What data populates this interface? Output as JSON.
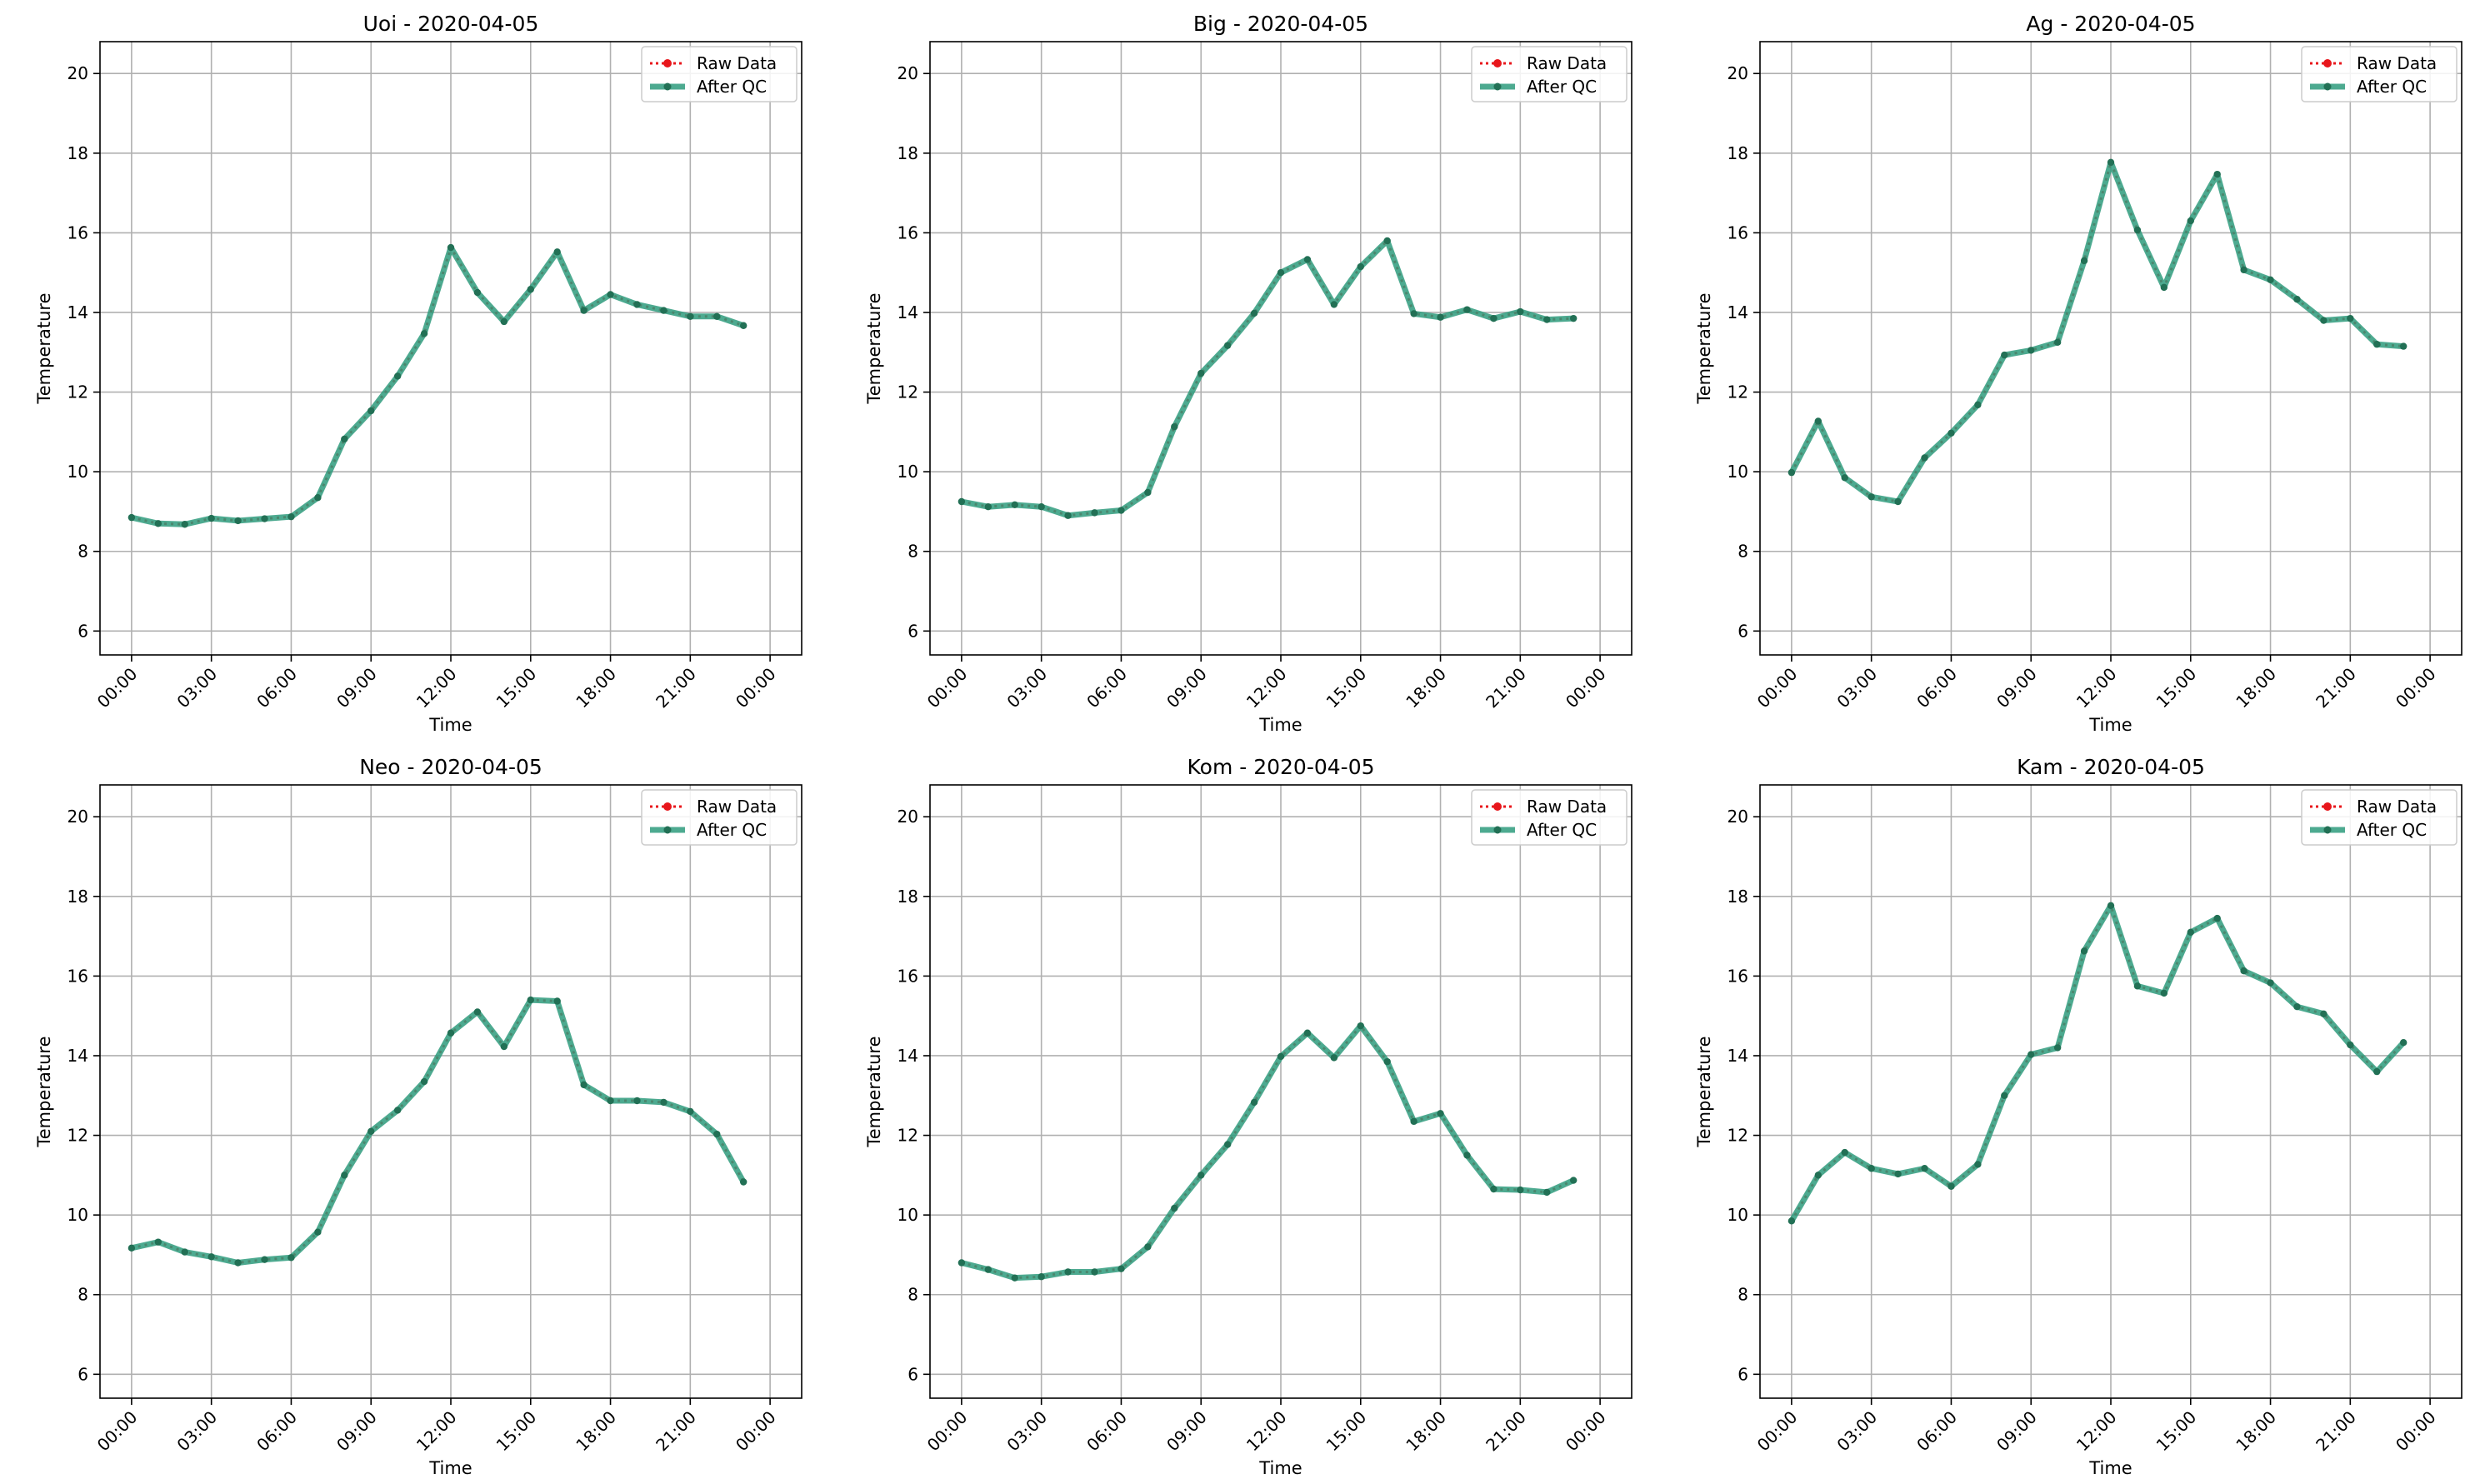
{
  "chart_data": [
    {
      "type": "line",
      "title": "Uoi - 2020-04-05",
      "xlabel": "Time",
      "ylabel": "Temperature",
      "ylim": [
        5.4,
        20.8
      ],
      "yticks": [
        6,
        8,
        10,
        12,
        14,
        16,
        18,
        20
      ],
      "x_tick_labels": [
        "00:00",
        "03:00",
        "06:00",
        "09:00",
        "12:00",
        "15:00",
        "18:00",
        "21:00",
        "00:00"
      ],
      "x": [
        "00:00",
        "01:00",
        "02:00",
        "03:00",
        "04:00",
        "05:00",
        "06:00",
        "07:00",
        "08:00",
        "09:00",
        "10:00",
        "11:00",
        "12:00",
        "13:00",
        "14:00",
        "15:00",
        "16:00",
        "17:00",
        "18:00",
        "19:00",
        "20:00",
        "21:00",
        "22:00",
        "23:00"
      ],
      "legend": "top-right",
      "grid": true,
      "series": [
        {
          "name": "Raw Data",
          "values": [
            8.85,
            8.7,
            8.68,
            8.83,
            8.77,
            8.82,
            8.87,
            9.35,
            10.82,
            11.53,
            12.4,
            13.47,
            15.63,
            14.5,
            13.77,
            14.58,
            15.52,
            14.05,
            14.45,
            14.2,
            14.05,
            13.9,
            13.9,
            13.67
          ]
        },
        {
          "name": "After QC",
          "values": [
            8.85,
            8.7,
            8.68,
            8.83,
            8.77,
            8.82,
            8.87,
            9.35,
            10.82,
            11.53,
            12.4,
            13.47,
            15.63,
            14.5,
            13.77,
            14.58,
            15.52,
            14.05,
            14.45,
            14.2,
            14.05,
            13.9,
            13.9,
            13.67
          ]
        }
      ]
    },
    {
      "type": "line",
      "title": "Big - 2020-04-05",
      "xlabel": "Time",
      "ylabel": "Temperature",
      "ylim": [
        5.4,
        20.8
      ],
      "yticks": [
        6,
        8,
        10,
        12,
        14,
        16,
        18,
        20
      ],
      "x_tick_labels": [
        "00:00",
        "03:00",
        "06:00",
        "09:00",
        "12:00",
        "15:00",
        "18:00",
        "21:00",
        "00:00"
      ],
      "x": [
        "00:00",
        "01:00",
        "02:00",
        "03:00",
        "04:00",
        "05:00",
        "06:00",
        "07:00",
        "08:00",
        "09:00",
        "10:00",
        "11:00",
        "12:00",
        "13:00",
        "14:00",
        "15:00",
        "16:00",
        "17:00",
        "18:00",
        "19:00",
        "20:00",
        "21:00",
        "22:00",
        "23:00"
      ],
      "legend": "top-right",
      "grid": true,
      "series": [
        {
          "name": "Raw Data",
          "values": [
            9.25,
            9.12,
            9.17,
            9.12,
            8.9,
            8.97,
            9.03,
            9.48,
            11.13,
            12.47,
            13.17,
            13.98,
            15.0,
            15.33,
            14.2,
            15.15,
            15.8,
            13.97,
            13.88,
            14.07,
            13.85,
            14.02,
            13.82,
            13.85
          ]
        },
        {
          "name": "After QC",
          "values": [
            9.25,
            9.12,
            9.17,
            9.12,
            8.9,
            8.97,
            9.03,
            9.48,
            11.13,
            12.47,
            13.17,
            13.98,
            15.0,
            15.33,
            14.2,
            15.15,
            15.8,
            13.97,
            13.88,
            14.07,
            13.85,
            14.02,
            13.82,
            13.85
          ]
        }
      ]
    },
    {
      "type": "line",
      "title": "Ag - 2020-04-05",
      "xlabel": "Time",
      "ylabel": "Temperature",
      "ylim": [
        5.4,
        20.8
      ],
      "yticks": [
        6,
        8,
        10,
        12,
        14,
        16,
        18,
        20
      ],
      "x_tick_labels": [
        "00:00",
        "03:00",
        "06:00",
        "09:00",
        "12:00",
        "15:00",
        "18:00",
        "21:00",
        "00:00"
      ],
      "x": [
        "00:00",
        "01:00",
        "02:00",
        "03:00",
        "04:00",
        "05:00",
        "06:00",
        "07:00",
        "08:00",
        "09:00",
        "10:00",
        "11:00",
        "12:00",
        "13:00",
        "14:00",
        "15:00",
        "16:00",
        "17:00",
        "18:00",
        "19:00",
        "20:00",
        "21:00",
        "22:00",
        "23:00"
      ],
      "legend": "top-right",
      "grid": true,
      "series": [
        {
          "name": "Raw Data",
          "values": [
            9.98,
            11.27,
            9.85,
            9.37,
            9.25,
            10.35,
            10.97,
            11.68,
            12.93,
            13.05,
            13.25,
            15.3,
            17.77,
            16.07,
            14.63,
            16.3,
            17.47,
            15.07,
            14.82,
            14.33,
            13.8,
            13.85,
            13.2,
            13.15
          ]
        },
        {
          "name": "After QC",
          "values": [
            9.98,
            11.27,
            9.85,
            9.37,
            9.25,
            10.35,
            10.97,
            11.68,
            12.93,
            13.05,
            13.25,
            15.3,
            17.77,
            16.07,
            14.63,
            16.3,
            17.47,
            15.07,
            14.82,
            14.33,
            13.8,
            13.85,
            13.2,
            13.15
          ]
        }
      ]
    },
    {
      "type": "line",
      "title": "Neo - 2020-04-05",
      "xlabel": "Time",
      "ylabel": "Temperature",
      "ylim": [
        5.4,
        20.8
      ],
      "yticks": [
        6,
        8,
        10,
        12,
        14,
        16,
        18,
        20
      ],
      "x_tick_labels": [
        "00:00",
        "03:00",
        "06:00",
        "09:00",
        "12:00",
        "15:00",
        "18:00",
        "21:00",
        "00:00"
      ],
      "x": [
        "00:00",
        "01:00",
        "02:00",
        "03:00",
        "04:00",
        "05:00",
        "06:00",
        "07:00",
        "08:00",
        "09:00",
        "10:00",
        "11:00",
        "12:00",
        "13:00",
        "14:00",
        "15:00",
        "16:00",
        "17:00",
        "18:00",
        "19:00",
        "20:00",
        "21:00",
        "22:00",
        "23:00"
      ],
      "legend": "top-right",
      "grid": true,
      "series": [
        {
          "name": "Raw Data",
          "values": [
            9.17,
            9.32,
            9.07,
            8.95,
            8.8,
            8.88,
            8.93,
            9.57,
            11.0,
            12.1,
            12.63,
            13.35,
            14.57,
            15.1,
            14.23,
            15.4,
            15.37,
            13.27,
            12.87,
            12.87,
            12.83,
            12.6,
            12.03,
            10.83
          ]
        },
        {
          "name": "After QC",
          "values": [
            9.17,
            9.32,
            9.07,
            8.95,
            8.8,
            8.88,
            8.93,
            9.57,
            11.0,
            12.1,
            12.63,
            13.35,
            14.57,
            15.1,
            14.23,
            15.4,
            15.37,
            13.27,
            12.87,
            12.87,
            12.83,
            12.6,
            12.03,
            10.83
          ]
        }
      ]
    },
    {
      "type": "line",
      "title": "Kom - 2020-04-05",
      "xlabel": "Time",
      "ylabel": "Temperature",
      "ylim": [
        5.4,
        20.8
      ],
      "yticks": [
        6,
        8,
        10,
        12,
        14,
        16,
        18,
        20
      ],
      "x_tick_labels": [
        "00:00",
        "03:00",
        "06:00",
        "09:00",
        "12:00",
        "15:00",
        "18:00",
        "21:00",
        "00:00"
      ],
      "x": [
        "00:00",
        "01:00",
        "02:00",
        "03:00",
        "04:00",
        "05:00",
        "06:00",
        "07:00",
        "08:00",
        "09:00",
        "10:00",
        "11:00",
        "12:00",
        "13:00",
        "14:00",
        "15:00",
        "16:00",
        "17:00",
        "18:00",
        "19:00",
        "20:00",
        "21:00",
        "22:00",
        "23:00"
      ],
      "legend": "top-right",
      "grid": true,
      "series": [
        {
          "name": "Raw Data",
          "values": [
            8.8,
            8.63,
            8.42,
            8.45,
            8.57,
            8.57,
            8.65,
            9.2,
            10.17,
            11.0,
            11.77,
            12.83,
            13.98,
            14.57,
            13.95,
            14.75,
            13.85,
            12.35,
            12.55,
            11.5,
            10.65,
            10.63,
            10.57,
            10.87
          ]
        },
        {
          "name": "After QC",
          "values": [
            8.8,
            8.63,
            8.42,
            8.45,
            8.57,
            8.57,
            8.65,
            9.2,
            10.17,
            11.0,
            11.77,
            12.83,
            13.98,
            14.57,
            13.95,
            14.75,
            13.85,
            12.35,
            12.55,
            11.5,
            10.65,
            10.63,
            10.57,
            10.87
          ]
        }
      ]
    },
    {
      "type": "line",
      "title": "Kam - 2020-04-05",
      "xlabel": "Time",
      "ylabel": "Temperature",
      "ylim": [
        5.4,
        20.8
      ],
      "yticks": [
        6,
        8,
        10,
        12,
        14,
        16,
        18,
        20
      ],
      "x_tick_labels": [
        "00:00",
        "03:00",
        "06:00",
        "09:00",
        "12:00",
        "15:00",
        "18:00",
        "21:00",
        "00:00"
      ],
      "x": [
        "00:00",
        "01:00",
        "02:00",
        "03:00",
        "04:00",
        "05:00",
        "06:00",
        "07:00",
        "08:00",
        "09:00",
        "10:00",
        "11:00",
        "12:00",
        "13:00",
        "14:00",
        "15:00",
        "16:00",
        "17:00",
        "18:00",
        "19:00",
        "20:00",
        "21:00",
        "22:00",
        "23:00"
      ],
      "legend": "top-right",
      "grid": true,
      "series": [
        {
          "name": "Raw Data",
          "values": [
            9.85,
            11.0,
            11.57,
            11.17,
            11.03,
            11.17,
            10.72,
            11.27,
            13.0,
            14.03,
            14.2,
            16.63,
            17.77,
            15.75,
            15.57,
            17.1,
            17.45,
            16.13,
            15.83,
            15.23,
            15.05,
            14.27,
            13.6,
            14.33
          ]
        },
        {
          "name": "After QC",
          "values": [
            9.85,
            11.0,
            11.57,
            11.17,
            11.03,
            11.17,
            10.72,
            11.27,
            13.0,
            14.03,
            14.2,
            16.63,
            17.77,
            15.75,
            15.57,
            17.1,
            17.45,
            16.13,
            15.83,
            15.23,
            15.05,
            14.27,
            13.6,
            14.33
          ]
        }
      ]
    }
  ],
  "colors": {
    "raw": "#e8161b",
    "qc": "#2e9b7c",
    "qc_marker": "#227055",
    "grid": "#b0b0b0",
    "axis": "#000000"
  }
}
